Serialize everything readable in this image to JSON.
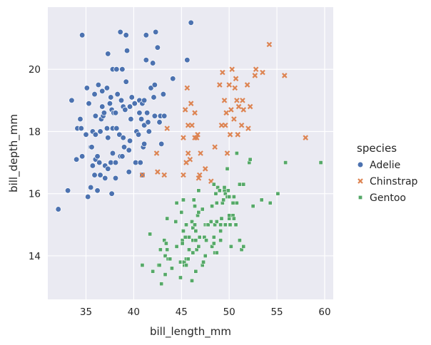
{
  "chart_data": {
    "type": "scatter",
    "title": "",
    "xlabel": "bill_length_mm",
    "ylabel": "bill_depth_mm",
    "xlim": [
      31.0,
      60.9
    ],
    "ylim": [
      12.6,
      22.0
    ],
    "xticks": [
      35,
      40,
      45,
      50,
      55,
      60
    ],
    "yticks": [
      14,
      16,
      18,
      20
    ],
    "grid": true,
    "legend_title": "species",
    "legend_position": "right",
    "series": [
      {
        "name": "Adelie",
        "marker": "circle",
        "color": "#4c72b0",
        "points": [
          [
            32.1,
            15.5
          ],
          [
            33.1,
            16.1
          ],
          [
            33.5,
            19.0
          ],
          [
            34.0,
            17.1
          ],
          [
            34.1,
            18.1
          ],
          [
            34.4,
            18.4
          ],
          [
            34.5,
            18.1
          ],
          [
            34.6,
            21.1
          ],
          [
            34.6,
            17.2
          ],
          [
            35.0,
            17.9
          ],
          [
            35.1,
            19.4
          ],
          [
            35.2,
            15.9
          ],
          [
            35.3,
            18.9
          ],
          [
            35.5,
            16.2
          ],
          [
            35.5,
            17.5
          ],
          [
            35.6,
            17.5
          ],
          [
            35.7,
            16.9
          ],
          [
            35.7,
            18.0
          ],
          [
            35.9,
            19.2
          ],
          [
            35.9,
            16.6
          ],
          [
            36.0,
            18.5
          ],
          [
            36.0,
            17.9
          ],
          [
            36.0,
            17.1
          ],
          [
            36.2,
            16.1
          ],
          [
            36.2,
            17.2
          ],
          [
            36.3,
            19.5
          ],
          [
            36.4,
            17.0
          ],
          [
            36.5,
            18.0
          ],
          [
            36.5,
            16.6
          ],
          [
            36.6,
            18.4
          ],
          [
            36.7,
            18.8
          ],
          [
            36.7,
            19.3
          ],
          [
            36.8,
            18.5
          ],
          [
            36.9,
            18.6
          ],
          [
            37.0,
            16.9
          ],
          [
            37.0,
            16.5
          ],
          [
            37.2,
            18.1
          ],
          [
            37.2,
            19.4
          ],
          [
            37.3,
            20.5
          ],
          [
            37.3,
            17.8
          ],
          [
            37.3,
            16.8
          ],
          [
            37.5,
            18.9
          ],
          [
            37.6,
            19.1
          ],
          [
            37.6,
            17.0
          ],
          [
            37.7,
            18.7
          ],
          [
            37.7,
            16.0
          ],
          [
            37.8,
            18.1
          ],
          [
            37.8,
            20.0
          ],
          [
            37.8,
            17.3
          ],
          [
            37.9,
            18.6
          ],
          [
            38.1,
            18.6
          ],
          [
            38.1,
            17.0
          ],
          [
            38.1,
            16.5
          ],
          [
            38.2,
            18.1
          ],
          [
            38.2,
            20.0
          ],
          [
            38.3,
            19.2
          ],
          [
            38.5,
            17.9
          ],
          [
            38.6,
            21.2
          ],
          [
            38.6,
            17.2
          ],
          [
            38.7,
            19.0
          ],
          [
            38.8,
            17.2
          ],
          [
            38.8,
            20.0
          ],
          [
            38.9,
            17.8
          ],
          [
            38.9,
            18.8
          ],
          [
            39.0,
            17.5
          ],
          [
            39.1,
            18.7
          ],
          [
            39.2,
            19.6
          ],
          [
            39.2,
            21.1
          ],
          [
            39.3,
            20.6
          ],
          [
            39.5,
            17.4
          ],
          [
            39.5,
            16.7
          ],
          [
            39.6,
            17.7
          ],
          [
            39.6,
            18.8
          ],
          [
            39.7,
            18.4
          ],
          [
            39.8,
            19.1
          ],
          [
            40.1,
            18.9
          ],
          [
            40.2,
            17.0
          ],
          [
            40.3,
            18.0
          ],
          [
            40.5,
            17.9
          ],
          [
            40.6,
            18.6
          ],
          [
            40.6,
            19.0
          ],
          [
            40.7,
            17.0
          ],
          [
            40.8,
            18.4
          ],
          [
            40.9,
            16.6
          ],
          [
            40.9,
            18.9
          ],
          [
            41.0,
            17.5
          ],
          [
            41.1,
            17.6
          ],
          [
            41.1,
            19.0
          ],
          [
            41.1,
            18.2
          ],
          [
            41.3,
            20.3
          ],
          [
            41.3,
            21.1
          ],
          [
            41.4,
            18.6
          ],
          [
            41.5,
            18.3
          ],
          [
            41.6,
            18.0
          ],
          [
            41.8,
            19.4
          ],
          [
            42.0,
            20.2
          ],
          [
            42.1,
            19.1
          ],
          [
            42.2,
            18.5
          ],
          [
            42.2,
            19.5
          ],
          [
            42.3,
            21.2
          ],
          [
            42.5,
            20.7
          ],
          [
            42.7,
            18.3
          ],
          [
            42.8,
            18.5
          ],
          [
            42.9,
            17.6
          ],
          [
            43.1,
            19.2
          ],
          [
            43.2,
            18.5
          ],
          [
            44.1,
            19.7
          ],
          [
            45.6,
            20.3
          ],
          [
            46.0,
            21.5
          ]
        ]
      },
      {
        "name": "Chinstrap",
        "marker": "x",
        "color": "#dd8452",
        "points": [
          [
            40.9,
            16.6
          ],
          [
            42.4,
            17.3
          ],
          [
            42.5,
            16.7
          ],
          [
            43.2,
            16.6
          ],
          [
            43.5,
            18.1
          ],
          [
            45.2,
            16.6
          ],
          [
            45.2,
            17.8
          ],
          [
            45.4,
            18.7
          ],
          [
            45.5,
            17.0
          ],
          [
            45.6,
            19.4
          ],
          [
            45.7,
            17.3
          ],
          [
            45.7,
            18.2
          ],
          [
            45.9,
            17.1
          ],
          [
            46.0,
            18.9
          ],
          [
            46.1,
            18.2
          ],
          [
            46.4,
            18.6
          ],
          [
            46.4,
            17.8
          ],
          [
            46.6,
            17.8
          ],
          [
            46.7,
            17.9
          ],
          [
            46.8,
            16.5
          ],
          [
            46.9,
            16.6
          ],
          [
            47.0,
            17.3
          ],
          [
            47.5,
            16.8
          ],
          [
            48.1,
            16.4
          ],
          [
            48.5,
            17.5
          ],
          [
            49.0,
            19.5
          ],
          [
            49.2,
            18.2
          ],
          [
            49.3,
            19.9
          ],
          [
            49.5,
            19.0
          ],
          [
            49.6,
            18.2
          ],
          [
            49.7,
            18.6
          ],
          [
            49.8,
            17.3
          ],
          [
            50.0,
            19.5
          ],
          [
            50.1,
            17.9
          ],
          [
            50.2,
            18.7
          ],
          [
            50.3,
            20.0
          ],
          [
            50.5,
            18.4
          ],
          [
            50.6,
            19.4
          ],
          [
            50.7,
            19.7
          ],
          [
            50.8,
            19.0
          ],
          [
            50.9,
            17.9
          ],
          [
            51.0,
            18.8
          ],
          [
            51.3,
            18.2
          ],
          [
            51.4,
            19.0
          ],
          [
            51.5,
            18.7
          ],
          [
            51.9,
            19.5
          ],
          [
            52.0,
            18.1
          ],
          [
            52.2,
            18.8
          ],
          [
            52.7,
            19.8
          ],
          [
            53.5,
            19.9
          ],
          [
            54.2,
            20.8
          ],
          [
            55.8,
            19.8
          ],
          [
            58.0,
            17.8
          ],
          [
            52.8,
            20.0
          ]
        ]
      },
      {
        "name": "Gentoo",
        "marker": "square",
        "color": "#55a868",
        "points": [
          [
            40.9,
            13.7
          ],
          [
            41.7,
            14.7
          ],
          [
            42.0,
            13.5
          ],
          [
            42.6,
            13.7
          ],
          [
            42.7,
            13.7
          ],
          [
            42.8,
            14.2
          ],
          [
            42.9,
            13.1
          ],
          [
            43.2,
            14.5
          ],
          [
            43.3,
            13.4
          ],
          [
            43.3,
            14.0
          ],
          [
            43.4,
            14.4
          ],
          [
            43.5,
            14.2
          ],
          [
            43.5,
            15.2
          ],
          [
            43.6,
            13.9
          ],
          [
            43.8,
            13.9
          ],
          [
            44.0,
            13.6
          ],
          [
            44.4,
            15.1
          ],
          [
            44.5,
            14.3
          ],
          [
            44.5,
            15.7
          ],
          [
            44.9,
            13.8
          ],
          [
            44.9,
            13.3
          ],
          [
            45.0,
            15.4
          ],
          [
            45.1,
            14.5
          ],
          [
            45.1,
            14.4
          ],
          [
            45.2,
            13.8
          ],
          [
            45.2,
            14.8
          ],
          [
            45.2,
            15.8
          ],
          [
            45.3,
            13.7
          ],
          [
            45.3,
            13.8
          ],
          [
            45.4,
            14.6
          ],
          [
            45.5,
            13.7
          ],
          [
            45.5,
            13.9
          ],
          [
            45.5,
            15.0
          ],
          [
            45.7,
            13.9
          ],
          [
            45.8,
            14.2
          ],
          [
            45.8,
            14.6
          ],
          [
            46.1,
            13.2
          ],
          [
            46.1,
            15.1
          ],
          [
            46.2,
            14.1
          ],
          [
            46.2,
            14.5
          ],
          [
            46.2,
            14.9
          ],
          [
            46.3,
            15.8
          ],
          [
            46.4,
            15.0
          ],
          [
            46.4,
            15.6
          ],
          [
            46.5,
            13.5
          ],
          [
            46.5,
            14.5
          ],
          [
            46.5,
            14.8
          ],
          [
            46.6,
            14.2
          ],
          [
            46.7,
            15.3
          ],
          [
            46.8,
            14.3
          ],
          [
            46.8,
            15.4
          ],
          [
            46.8,
            16.1
          ],
          [
            46.9,
            14.6
          ],
          [
            47.2,
            13.7
          ],
          [
            47.2,
            15.5
          ],
          [
            47.3,
            13.8
          ],
          [
            47.4,
            14.6
          ],
          [
            47.5,
            14.0
          ],
          [
            47.5,
            15.0
          ],
          [
            47.6,
            14.5
          ],
          [
            47.7,
            15.0
          ],
          [
            47.8,
            15.0
          ],
          [
            48.1,
            15.1
          ],
          [
            48.2,
            14.3
          ],
          [
            48.2,
            15.6
          ],
          [
            48.4,
            14.4
          ],
          [
            48.4,
            14.6
          ],
          [
            48.4,
            16.3
          ],
          [
            48.5,
            14.1
          ],
          [
            48.5,
            15.0
          ],
          [
            48.6,
            16.0
          ],
          [
            48.7,
            14.1
          ],
          [
            48.7,
            15.1
          ],
          [
            48.7,
            15.7
          ],
          [
            48.8,
            16.2
          ],
          [
            49.0,
            16.1
          ],
          [
            49.1,
            14.5
          ],
          [
            49.1,
            14.8
          ],
          [
            49.1,
            15.0
          ],
          [
            49.2,
            15.2
          ],
          [
            49.3,
            15.7
          ],
          [
            49.4,
            15.8
          ],
          [
            49.5,
            16.1
          ],
          [
            49.5,
            16.2
          ],
          [
            49.6,
            15.0
          ],
          [
            49.6,
            16.0
          ],
          [
            49.8,
            15.9
          ],
          [
            49.8,
            16.8
          ],
          [
            49.9,
            16.1
          ],
          [
            50.0,
            15.2
          ],
          [
            50.0,
            15.3
          ],
          [
            50.0,
            15.9
          ],
          [
            50.1,
            15.0
          ],
          [
            50.2,
            14.3
          ],
          [
            50.4,
            15.3
          ],
          [
            50.4,
            15.7
          ],
          [
            50.5,
            15.2
          ],
          [
            50.5,
            15.9
          ],
          [
            50.7,
            15.0
          ],
          [
            50.8,
            15.7
          ],
          [
            50.8,
            17.3
          ],
          [
            51.1,
            14.5
          ],
          [
            51.1,
            16.3
          ],
          [
            51.3,
            14.2
          ],
          [
            51.5,
            14.3
          ],
          [
            51.5,
            16.3
          ],
          [
            52.1,
            17.0
          ],
          [
            52.2,
            17.1
          ],
          [
            52.5,
            15.6
          ],
          [
            53.4,
            15.8
          ],
          [
            54.3,
            15.7
          ],
          [
            55.1,
            16.0
          ],
          [
            55.9,
            17.0
          ],
          [
            59.6,
            17.0
          ]
        ]
      }
    ]
  }
}
